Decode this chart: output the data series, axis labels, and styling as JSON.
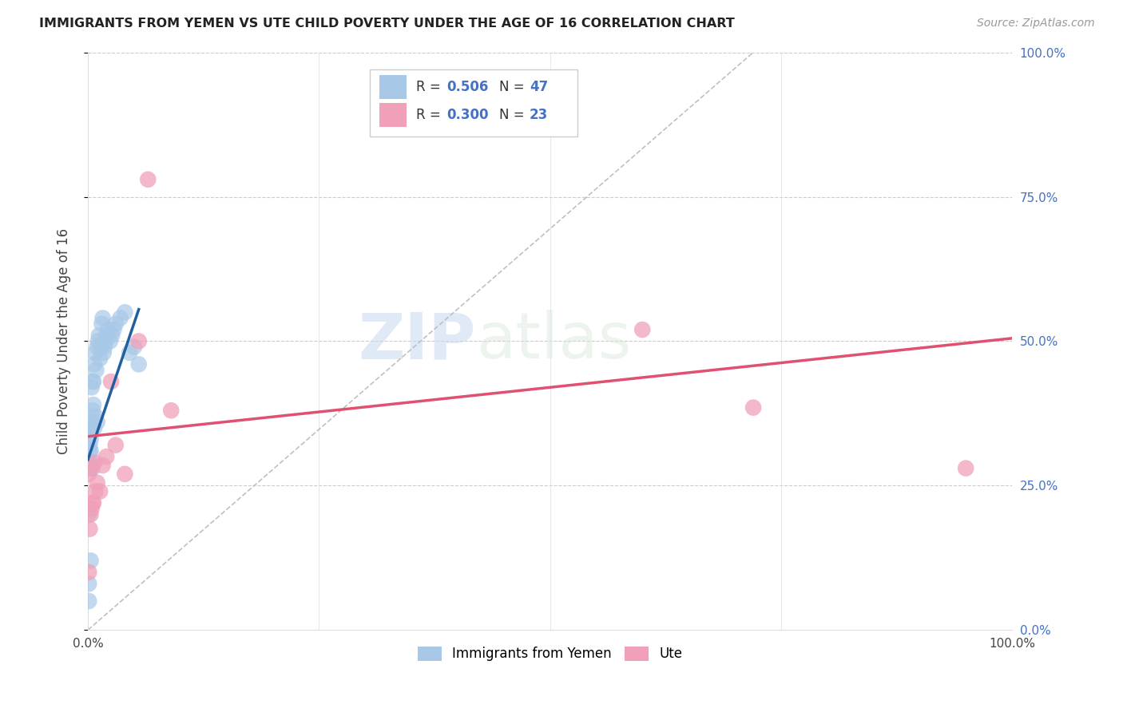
{
  "title": "IMMIGRANTS FROM YEMEN VS UTE CHILD POVERTY UNDER THE AGE OF 16 CORRELATION CHART",
  "source": "Source: ZipAtlas.com",
  "ylabel": "Child Poverty Under the Age of 16",
  "xlim": [
    0,
    1.0
  ],
  "ylim": [
    0,
    1.0
  ],
  "legend_r_blue": "0.506",
  "legend_n_blue": "47",
  "legend_r_pink": "0.300",
  "legend_n_pink": "23",
  "blue_color": "#a8c8e8",
  "blue_line_color": "#2060a0",
  "pink_color": "#f0a0b8",
  "pink_line_color": "#e05070",
  "dashed_line_color": "#c0c0c0",
  "watermark_zip": "ZIP",
  "watermark_atlas": "atlas",
  "background_color": "#ffffff",
  "blue_scatter_x": [
    0.001,
    0.001,
    0.001,
    0.001,
    0.002,
    0.002,
    0.002,
    0.002,
    0.003,
    0.003,
    0.003,
    0.003,
    0.004,
    0.004,
    0.005,
    0.005,
    0.005,
    0.006,
    0.006,
    0.007,
    0.007,
    0.008,
    0.008,
    0.009,
    0.01,
    0.01,
    0.011,
    0.012,
    0.013,
    0.014,
    0.015,
    0.016,
    0.017,
    0.018,
    0.019,
    0.02,
    0.022,
    0.024,
    0.026,
    0.028,
    0.03,
    0.035,
    0.04,
    0.045,
    0.05,
    0.055,
    0.003
  ],
  "blue_scatter_y": [
    0.05,
    0.08,
    0.2,
    0.29,
    0.31,
    0.32,
    0.35,
    0.28,
    0.29,
    0.31,
    0.33,
    0.35,
    0.36,
    0.42,
    0.38,
    0.43,
    0.28,
    0.39,
    0.43,
    0.35,
    0.46,
    0.37,
    0.48,
    0.45,
    0.49,
    0.36,
    0.5,
    0.51,
    0.47,
    0.49,
    0.53,
    0.54,
    0.48,
    0.49,
    0.5,
    0.51,
    0.52,
    0.5,
    0.51,
    0.52,
    0.53,
    0.54,
    0.55,
    0.48,
    0.49,
    0.46,
    0.12
  ],
  "pink_scatter_x": [
    0.001,
    0.001,
    0.002,
    0.003,
    0.003,
    0.004,
    0.005,
    0.006,
    0.007,
    0.008,
    0.01,
    0.013,
    0.016,
    0.02,
    0.025,
    0.03,
    0.04,
    0.055,
    0.065,
    0.09,
    0.6,
    0.72,
    0.95
  ],
  "pink_scatter_y": [
    0.1,
    0.27,
    0.175,
    0.2,
    0.28,
    0.21,
    0.22,
    0.22,
    0.29,
    0.24,
    0.255,
    0.24,
    0.285,
    0.3,
    0.43,
    0.32,
    0.27,
    0.5,
    0.78,
    0.38,
    0.52,
    0.385,
    0.28
  ],
  "blue_line_x": [
    0.0,
    0.055
  ],
  "blue_line_y": [
    0.295,
    0.555
  ],
  "pink_line_x": [
    0.0,
    1.0
  ],
  "pink_line_y": [
    0.335,
    0.505
  ],
  "dash_line_x": [
    0.0,
    0.72
  ],
  "dash_line_y": [
    0.0,
    1.0
  ]
}
